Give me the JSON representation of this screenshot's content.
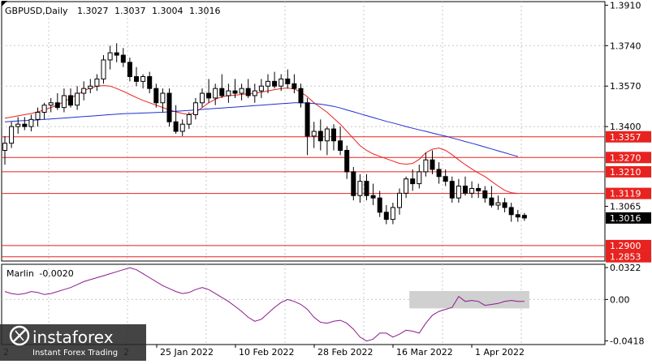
{
  "chart_data": [
    {
      "type": "candlestick",
      "header": {
        "symbol": "GBPUSD,Daily",
        "open": "1.3027",
        "high": "1.3037",
        "low": "1.3004",
        "close": "1.3016"
      },
      "ylim": [
        1.2835,
        1.3925
      ],
      "y_ticks": [
        "1.3910",
        "1.3740",
        "1.3570",
        "1.3400",
        "1.3065"
      ],
      "x_ticks": [
        "25 Jan 2022",
        "10 Feb 2022",
        "28 Feb 2022",
        "16 Mar 2022",
        "1 Apr 2022"
      ],
      "x_ticks_partial": [
        "2",
        "2"
      ],
      "current_price_label": "1.3016",
      "levels": [
        {
          "value": 1.3357,
          "label": "1.3357",
          "color": "#e8221f"
        },
        {
          "value": 1.327,
          "label": "1.3270",
          "color": "#e8221f"
        },
        {
          "value": 1.321,
          "label": "1.3210",
          "color": "#e8221f"
        },
        {
          "value": 1.3119,
          "label": "1.3119",
          "color": "#e8221f"
        },
        {
          "value": 1.29,
          "label": "1.2900",
          "color": "#e8221f"
        },
        {
          "value": 1.2853,
          "label": "1.2853",
          "color": "#e8221f"
        }
      ],
      "ohlc": [
        [
          1.33,
          1.336,
          1.324,
          1.333
        ],
        [
          1.333,
          1.342,
          1.331,
          1.34
        ],
        [
          1.34,
          1.344,
          1.337,
          1.341
        ],
        [
          1.341,
          1.344,
          1.3385,
          1.34
        ],
        [
          1.34,
          1.345,
          1.338,
          1.343
        ],
        [
          1.343,
          1.348,
          1.34,
          1.346
        ],
        [
          1.346,
          1.35,
          1.343,
          1.349
        ],
        [
          1.349,
          1.352,
          1.346,
          1.35
        ],
        [
          1.35,
          1.354,
          1.347,
          1.348
        ],
        [
          1.348,
          1.356,
          1.346,
          1.353
        ],
        [
          1.353,
          1.356,
          1.348,
          1.349
        ],
        [
          1.349,
          1.357,
          1.347,
          1.354
        ],
        [
          1.354,
          1.359,
          1.351,
          1.356
        ],
        [
          1.356,
          1.36,
          1.354,
          1.357
        ],
        [
          1.357,
          1.362,
          1.355,
          1.36
        ],
        [
          1.36,
          1.37,
          1.358,
          1.368
        ],
        [
          1.368,
          1.374,
          1.364,
          1.371
        ],
        [
          1.371,
          1.375,
          1.367,
          1.37
        ],
        [
          1.37,
          1.373,
          1.365,
          1.367
        ],
        [
          1.367,
          1.369,
          1.359,
          1.361
        ],
        [
          1.361,
          1.365,
          1.357,
          1.359
        ],
        [
          1.359,
          1.362,
          1.356,
          1.361
        ],
        [
          1.361,
          1.363,
          1.354,
          1.356
        ],
        [
          1.356,
          1.358,
          1.348,
          1.35
        ],
        [
          1.35,
          1.356,
          1.346,
          1.354
        ],
        [
          1.354,
          1.356,
          1.34,
          1.342
        ],
        [
          1.342,
          1.349,
          1.337,
          1.338
        ],
        [
          1.338,
          1.343,
          1.336,
          1.341
        ],
        [
          1.341,
          1.346,
          1.339,
          1.345
        ],
        [
          1.345,
          1.352,
          1.343,
          1.35
        ],
        [
          1.35,
          1.356,
          1.348,
          1.354
        ],
        [
          1.354,
          1.36,
          1.35,
          1.352
        ],
        [
          1.352,
          1.358,
          1.349,
          1.356
        ],
        [
          1.356,
          1.362,
          1.352,
          1.353
        ],
        [
          1.353,
          1.358,
          1.35,
          1.355
        ],
        [
          1.355,
          1.36,
          1.352,
          1.354
        ],
        [
          1.354,
          1.358,
          1.351,
          1.356
        ],
        [
          1.356,
          1.36,
          1.352,
          1.353
        ],
        [
          1.353,
          1.358,
          1.35,
          1.355
        ],
        [
          1.355,
          1.36,
          1.352,
          1.357
        ],
        [
          1.357,
          1.362,
          1.354,
          1.359
        ],
        [
          1.359,
          1.363,
          1.356,
          1.357
        ],
        [
          1.357,
          1.362,
          1.355,
          1.36
        ],
        [
          1.36,
          1.364,
          1.356,
          1.358
        ],
        [
          1.358,
          1.362,
          1.354,
          1.356
        ],
        [
          1.356,
          1.358,
          1.348,
          1.35
        ],
        [
          1.35,
          1.352,
          1.328,
          1.336
        ],
        [
          1.336,
          1.342,
          1.331,
          1.338
        ],
        [
          1.338,
          1.343,
          1.33,
          1.334
        ],
        [
          1.334,
          1.34,
          1.328,
          1.339
        ],
        [
          1.339,
          1.341,
          1.33,
          1.334
        ],
        [
          1.334,
          1.34,
          1.328,
          1.33
        ],
        [
          1.33,
          1.332,
          1.318,
          1.321
        ],
        [
          1.321,
          1.323,
          1.309,
          1.311
        ],
        [
          1.311,
          1.32,
          1.308,
          1.317
        ],
        [
          1.317,
          1.32,
          1.309,
          1.311
        ],
        [
          1.311,
          1.316,
          1.307,
          1.31
        ],
        [
          1.31,
          1.313,
          1.302,
          1.304
        ],
        [
          1.304,
          1.307,
          1.299,
          1.301
        ],
        [
          1.301,
          1.308,
          1.299,
          1.306
        ],
        [
          1.306,
          1.314,
          1.303,
          1.312
        ],
        [
          1.312,
          1.319,
          1.31,
          1.318
        ],
        [
          1.318,
          1.322,
          1.313,
          1.316
        ],
        [
          1.316,
          1.324,
          1.314,
          1.321
        ],
        [
          1.321,
          1.329,
          1.319,
          1.326
        ],
        [
          1.326,
          1.33,
          1.32,
          1.322
        ],
        [
          1.322,
          1.325,
          1.316,
          1.319
        ],
        [
          1.319,
          1.322,
          1.315,
          1.317
        ],
        [
          1.317,
          1.319,
          1.308,
          1.31
        ],
        [
          1.31,
          1.318,
          1.308,
          1.315
        ],
        [
          1.315,
          1.319,
          1.311,
          1.312
        ],
        [
          1.312,
          1.317,
          1.31,
          1.314
        ],
        [
          1.314,
          1.316,
          1.31,
          1.313
        ],
        [
          1.313,
          1.315,
          1.308,
          1.31
        ],
        [
          1.31,
          1.315,
          1.306,
          1.307
        ],
        [
          1.307,
          1.311,
          1.305,
          1.308
        ],
        [
          1.308,
          1.31,
          1.304,
          1.306
        ],
        [
          1.306,
          1.308,
          1.3,
          1.303
        ],
        [
          1.303,
          1.305,
          1.3,
          1.302
        ],
        [
          1.3027,
          1.3037,
          1.3004,
          1.3016
        ]
      ],
      "moving_averages": [
        {
          "color": "#e8221f",
          "values": [
            1.3435,
            1.344,
            1.3445,
            1.345,
            1.3455,
            1.3462,
            1.347,
            1.348,
            1.349,
            1.3505,
            1.352,
            1.3535,
            1.355,
            1.3562,
            1.357,
            1.3572,
            1.357,
            1.356,
            1.3548,
            1.3535,
            1.3522,
            1.351,
            1.35,
            1.349,
            1.348,
            1.347,
            1.3462,
            1.3455,
            1.345,
            1.346,
            1.348,
            1.35,
            1.3515,
            1.3525,
            1.353,
            1.3532,
            1.3535,
            1.3538,
            1.354,
            1.3545,
            1.355,
            1.3555,
            1.356,
            1.3562,
            1.3558,
            1.3545,
            1.3525,
            1.35,
            1.348,
            1.346,
            1.3435,
            1.341,
            1.338,
            1.335,
            1.332,
            1.33,
            1.3285,
            1.3275,
            1.3265,
            1.3255,
            1.3245,
            1.3242,
            1.3245,
            1.3262,
            1.329,
            1.3305,
            1.331,
            1.33,
            1.3282,
            1.326,
            1.324,
            1.3222,
            1.3205,
            1.319,
            1.317,
            1.315,
            1.3132,
            1.3122,
            1.3119
          ]
        },
        {
          "color": "#1f2fd0",
          "values": [
            1.342,
            1.3422,
            1.3424,
            1.3425,
            1.3426,
            1.3428,
            1.343,
            1.3432,
            1.3434,
            1.3436,
            1.3438,
            1.344,
            1.3442,
            1.3444,
            1.3446,
            1.3448,
            1.345,
            1.3452,
            1.3454,
            1.3455,
            1.3456,
            1.3457,
            1.3458,
            1.3459,
            1.346,
            1.3462,
            1.3464,
            1.3466,
            1.3468,
            1.347,
            1.3472,
            1.3474,
            1.3476,
            1.3478,
            1.348,
            1.3482,
            1.3484,
            1.3486,
            1.3488,
            1.349,
            1.3492,
            1.3494,
            1.3496,
            1.3498,
            1.35,
            1.35,
            1.3499,
            1.3497,
            1.3494,
            1.349,
            1.3485,
            1.3478,
            1.347,
            1.3462,
            1.3454,
            1.3446,
            1.3438,
            1.343,
            1.3422,
            1.3415,
            1.3408,
            1.34,
            1.3393,
            1.3386,
            1.338,
            1.3373,
            1.3366,
            1.336,
            1.3352,
            1.3345,
            1.3337,
            1.333,
            1.3322,
            1.3314,
            1.3306,
            1.3298,
            1.329,
            1.3282,
            1.3274
          ]
        }
      ]
    },
    {
      "type": "line",
      "name": "Marlin",
      "value_label": "-0.0020",
      "ylim": [
        -0.0455,
        0.0355
      ],
      "y_ticks": [
        "0.0322",
        "0.00",
        "-0.0418"
      ],
      "highlight_box": {
        "from_index": 62,
        "to_index": 79
      },
      "values": [
        0.008,
        0.006,
        0.005,
        0.006,
        0.008,
        0.007,
        0.005,
        0.006,
        0.008,
        0.01,
        0.012,
        0.015,
        0.018,
        0.02,
        0.022,
        0.024,
        0.026,
        0.028,
        0.03,
        0.032,
        0.03,
        0.026,
        0.022,
        0.018,
        0.014,
        0.011,
        0.008,
        0.006,
        0.007,
        0.01,
        0.012,
        0.01,
        0.006,
        0.002,
        -0.002,
        -0.007,
        -0.012,
        -0.018,
        -0.022,
        -0.02,
        -0.014,
        -0.008,
        -0.003,
        0.0,
        -0.002,
        -0.005,
        -0.01,
        -0.018,
        -0.023,
        -0.024,
        -0.022,
        -0.021,
        -0.024,
        -0.03,
        -0.038,
        -0.042,
        -0.04,
        -0.034,
        -0.034,
        -0.038,
        -0.035,
        -0.031,
        -0.032,
        -0.034,
        -0.024,
        -0.016,
        -0.012,
        -0.01,
        -0.008,
        0.003,
        -0.002,
        -0.001,
        -0.002,
        -0.006,
        -0.005,
        -0.004,
        -0.002,
        -0.001,
        -0.002,
        -0.002
      ]
    }
  ],
  "watermark": {
    "brand": "instaforex",
    "tagline": "Instant Forex Trading"
  }
}
